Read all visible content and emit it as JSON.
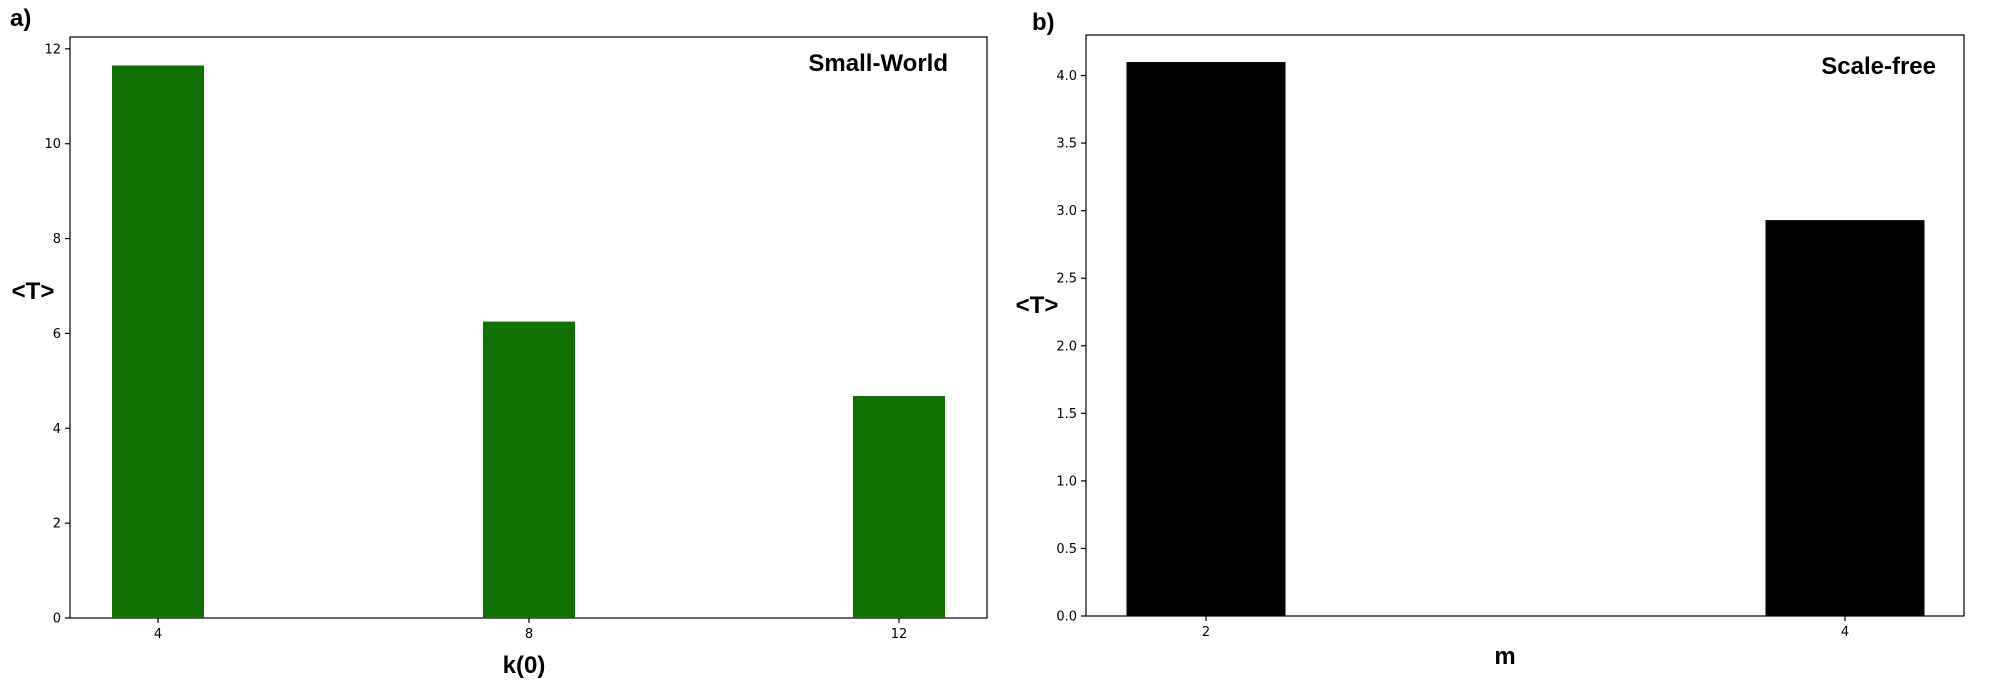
{
  "chart_data": [
    {
      "type": "bar",
      "panel_label": "a)",
      "title": "Small-World",
      "xlabel": "k(0)",
      "ylabel": "<T>",
      "categories": [
        "4",
        "8",
        "12"
      ],
      "values": [
        11.65,
        6.25,
        4.68
      ],
      "ylim": [
        0,
        12.25
      ],
      "yticks": [
        0,
        2,
        4,
        6,
        8,
        10,
        12
      ],
      "ytick_labels": [
        "0",
        "2",
        "4",
        "6",
        "8",
        "10",
        "12"
      ],
      "bar_color": "#107000",
      "grid": false,
      "legend": "none"
    },
    {
      "type": "bar",
      "panel_label": "b)",
      "title": "Scale-free",
      "xlabel": "m",
      "ylabel": "<T>",
      "categories": [
        "2",
        "4"
      ],
      "values": [
        4.1,
        2.93
      ],
      "ylim": [
        0,
        4.3
      ],
      "yticks": [
        0,
        0.5,
        1,
        1.5,
        2,
        2.5,
        3,
        3.5,
        4
      ],
      "ytick_labels": [
        "0.0",
        "0.5",
        "1.0",
        "1.5",
        "2.0",
        "2.5",
        "3.0",
        "3.5",
        "4.0"
      ],
      "bar_color": "#000000",
      "grid": false,
      "legend": "none"
    }
  ]
}
